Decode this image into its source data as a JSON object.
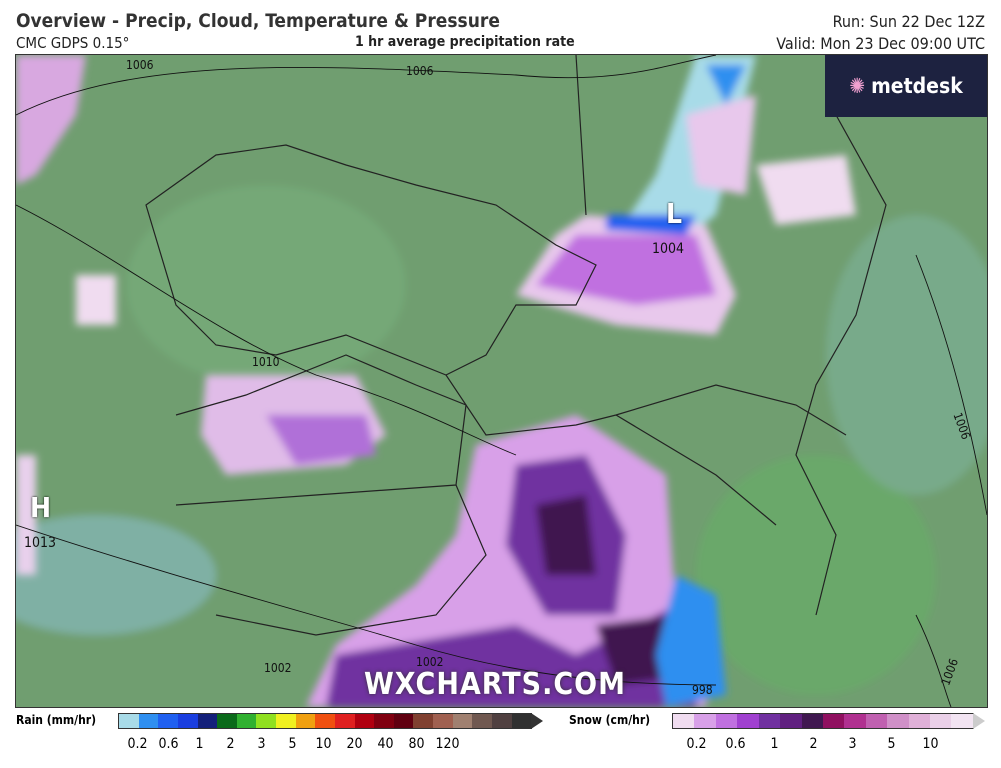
{
  "header": {
    "title": "Overview - Precip, Cloud, Temperature & Pressure",
    "model": "CMC GDPS 0.15°",
    "subtitle": "1 hr average precipitation rate",
    "run": "Run: Sun 22 Dec 12Z",
    "valid": "Valid: Mon 23 Dec 09:00 UTC"
  },
  "logo": {
    "text": "metdesk"
  },
  "watermark": "WXCHARTS.COM",
  "map": {
    "pressure_systems": [
      {
        "type": "L",
        "value": "1004"
      },
      {
        "type": "H",
        "value": "1013"
      }
    ],
    "isobar_labels": [
      "1006",
      "1006",
      "1010",
      "1006",
      "1002",
      "1002",
      "998",
      "1006"
    ]
  },
  "legend": {
    "rain": {
      "label": "Rain (mm/hr)",
      "ticks": [
        "0.2",
        "0.6",
        "1",
        "2",
        "3",
        "5",
        "10",
        "20",
        "40",
        "80",
        "120"
      ],
      "colors": [
        "#a8dbe8",
        "#2f8ff0",
        "#2060f0",
        "#1a3ee0",
        "#14207a",
        "#0a6a1a",
        "#30b030",
        "#90e020",
        "#f0f020",
        "#f0a010",
        "#f05010",
        "#e02020",
        "#b00010",
        "#800010",
        "#600010",
        "#804030",
        "#a06050",
        "#a08070",
        "#705850",
        "#504040",
        "#303030"
      ]
    },
    "snow": {
      "label": "Snow (cm/hr)",
      "ticks": [
        "0.2",
        "0.6",
        "1",
        "2",
        "3",
        "5",
        "10"
      ],
      "colors": [
        "#f0dcf0",
        "#d8a0e8",
        "#c070e0",
        "#a040d0",
        "#7030a0",
        "#602080",
        "#401850",
        "#901060",
        "#b03090",
        "#c060b0",
        "#d090c8",
        "#e0b0d8",
        "#ead0e8",
        "#f2e4f2"
      ]
    }
  }
}
